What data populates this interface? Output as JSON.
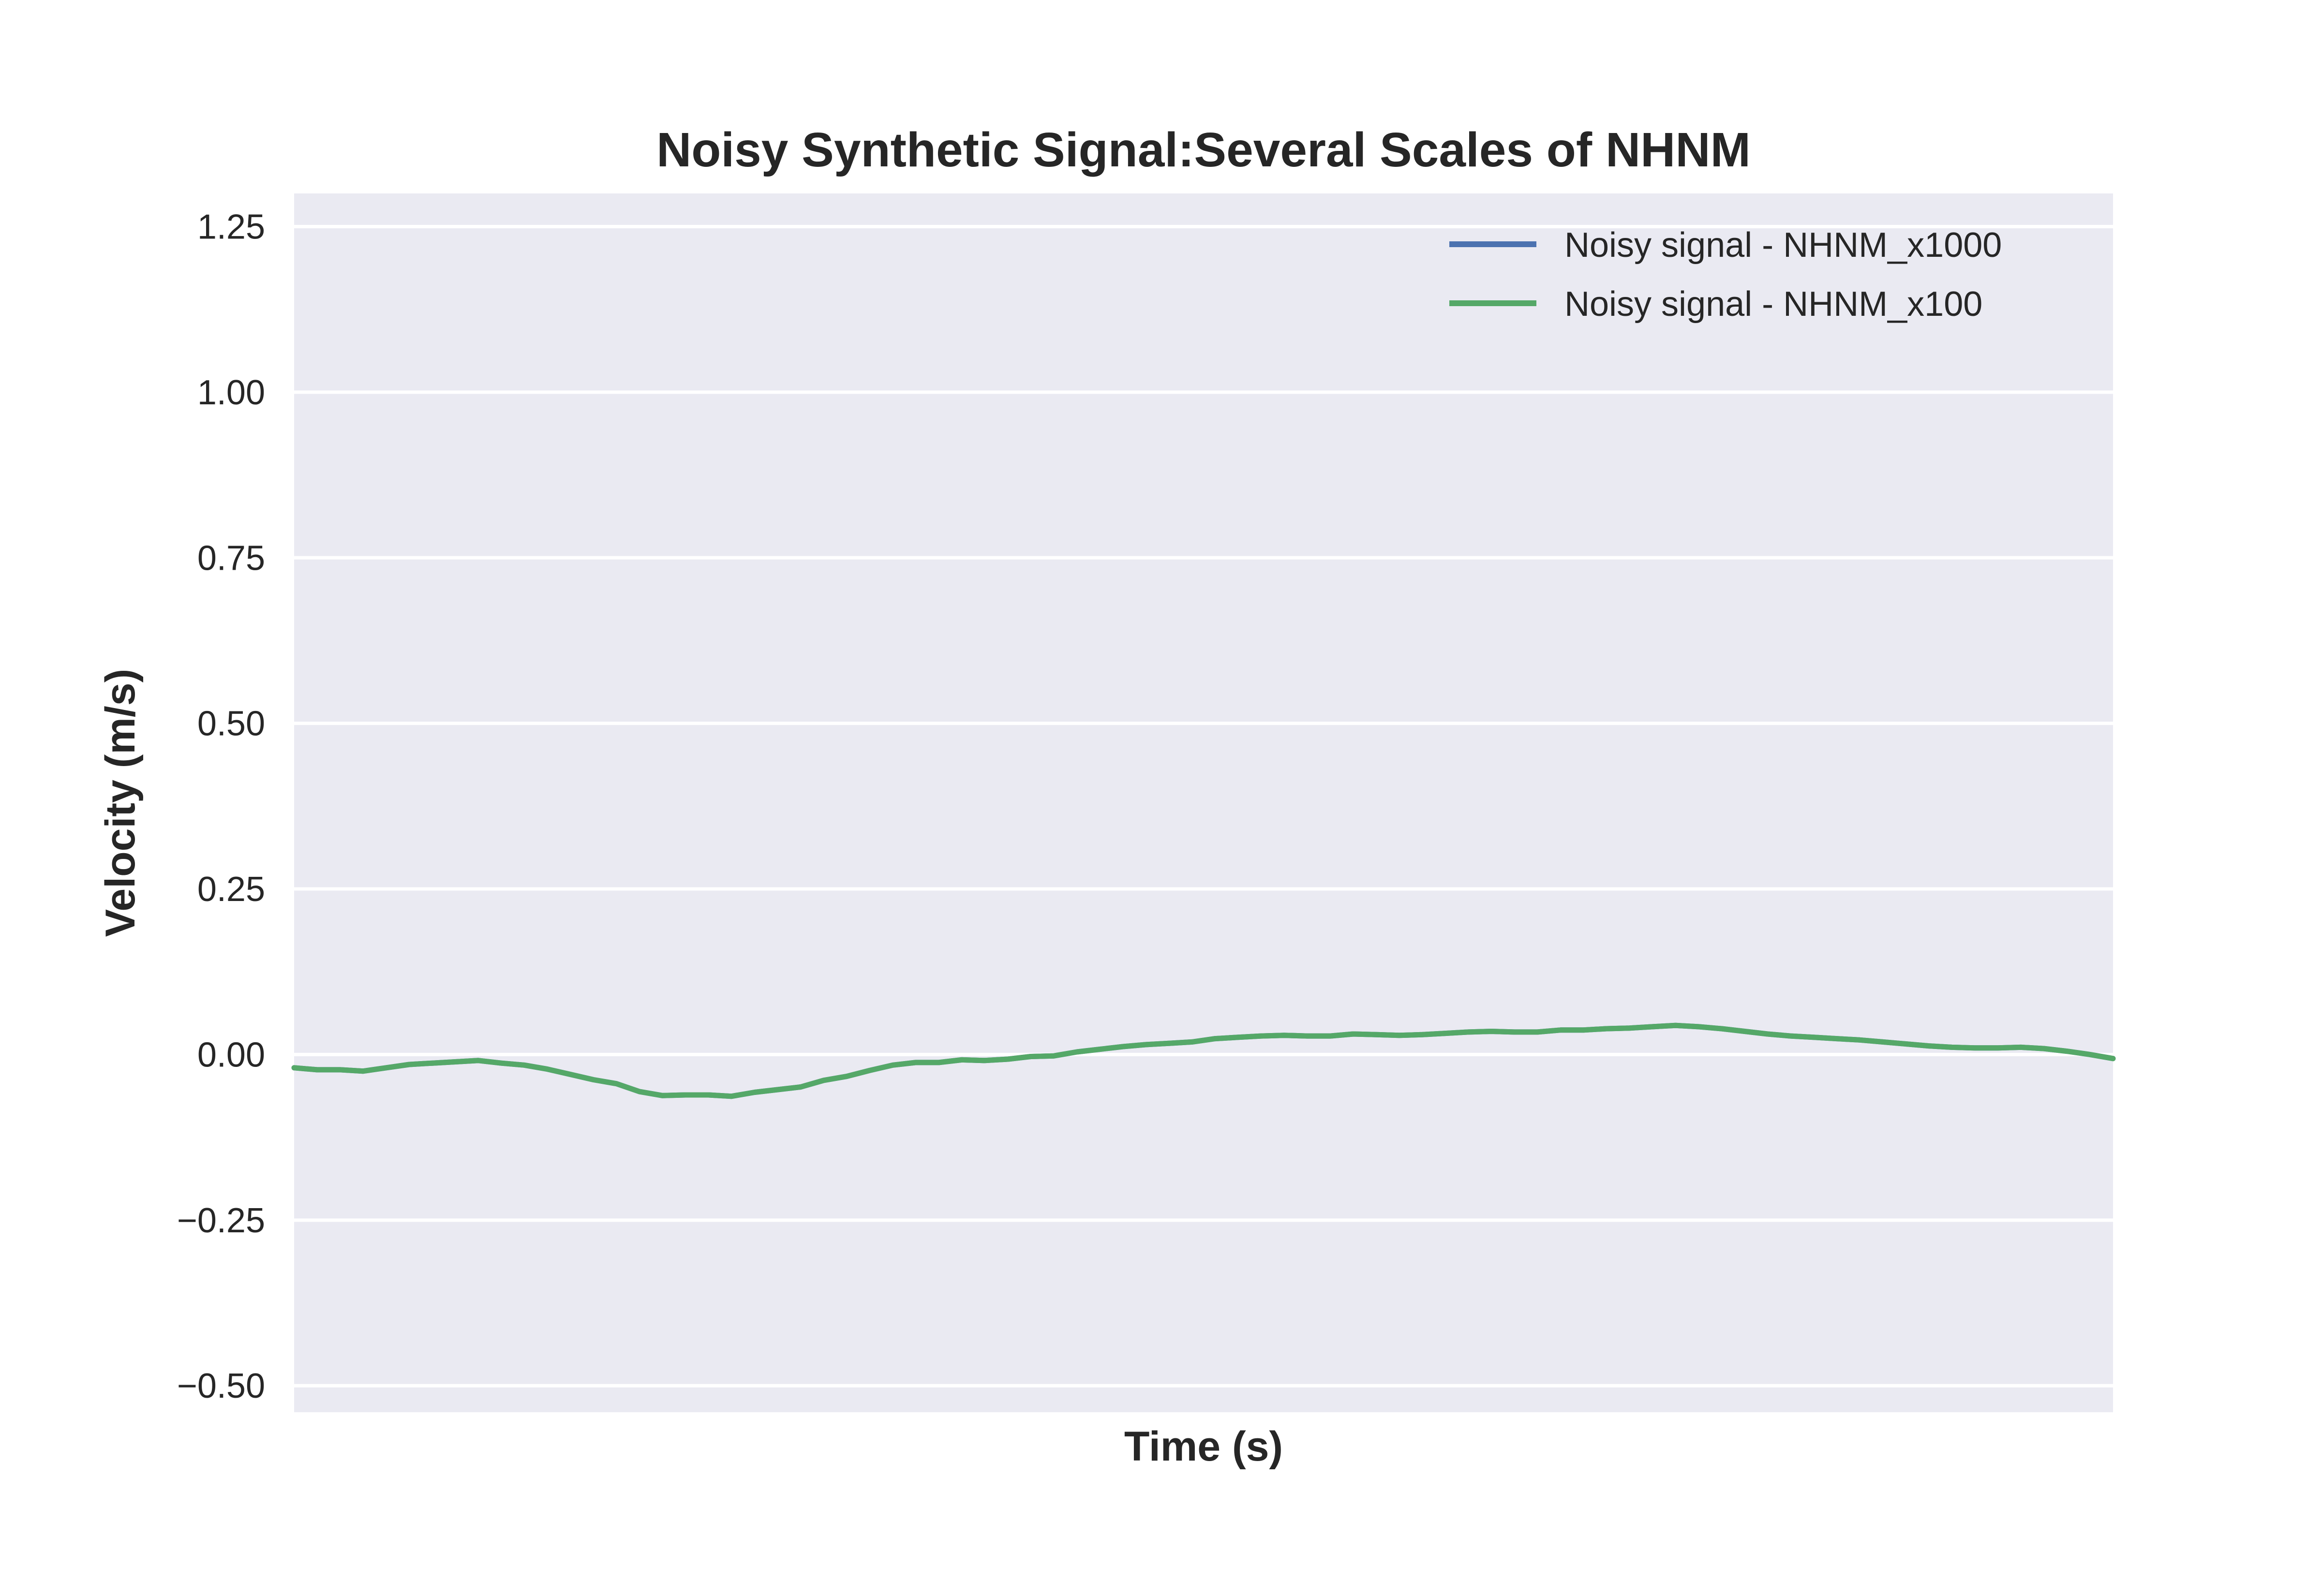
{
  "chart_data": {
    "type": "line",
    "title": "Noisy Synthetic Signal:Several Scales of NHNM",
    "xlabel": "Time (s)",
    "ylabel": "Velocity (m/s)",
    "ylim": [
      -0.54,
      1.3
    ],
    "yticks": [
      -0.5,
      -0.25,
      0.0,
      0.25,
      0.5,
      0.75,
      1.0,
      1.25
    ],
    "ytick_labels": [
      "−0.50",
      "−0.25",
      "0.00",
      "0.25",
      "0.50",
      "0.75",
      "1.00",
      "1.25"
    ],
    "xticks_visible": false,
    "grid": true,
    "background": "#eaeaf2",
    "legend_position": "top-right",
    "series": [
      {
        "name": "Noisy signal - NHNM_x1000",
        "color": "#4c72b0",
        "values": [
          -0.02,
          -0.023,
          -0.023,
          -0.025,
          -0.02,
          -0.015,
          -0.013,
          -0.011,
          -0.009,
          -0.013,
          -0.016,
          -0.022,
          -0.03,
          -0.038,
          -0.044,
          -0.056,
          -0.062,
          -0.061,
          -0.061,
          -0.063,
          -0.057,
          -0.053,
          -0.049,
          -0.039,
          -0.033,
          -0.024,
          -0.016,
          -0.012,
          -0.012,
          -0.008,
          -0.009,
          -0.007,
          -0.003,
          -0.002,
          0.004,
          0.008,
          0.012,
          0.015,
          0.017,
          0.019,
          0.024,
          0.026,
          0.028,
          0.029,
          0.028,
          0.028,
          0.031,
          0.03,
          0.029,
          0.03,
          0.032,
          0.034,
          0.035,
          0.034,
          0.034,
          0.037,
          0.037,
          0.039,
          0.04,
          0.042,
          0.044,
          0.042,
          0.039,
          0.035,
          0.031,
          0.028,
          0.026,
          0.024,
          0.022,
          0.019,
          0.016,
          0.013,
          0.011,
          0.01,
          0.01,
          0.011,
          0.009,
          0.005,
          0.0,
          -0.006
        ]
      },
      {
        "name": "Noisy signal - NHNM_x100",
        "color": "#55a868",
        "values": [
          -0.02,
          -0.023,
          -0.023,
          -0.025,
          -0.02,
          -0.015,
          -0.013,
          -0.011,
          -0.009,
          -0.013,
          -0.016,
          -0.022,
          -0.03,
          -0.038,
          -0.044,
          -0.056,
          -0.062,
          -0.061,
          -0.061,
          -0.063,
          -0.057,
          -0.053,
          -0.049,
          -0.039,
          -0.033,
          -0.024,
          -0.016,
          -0.012,
          -0.012,
          -0.008,
          -0.009,
          -0.007,
          -0.003,
          -0.002,
          0.004,
          0.008,
          0.012,
          0.015,
          0.017,
          0.019,
          0.024,
          0.026,
          0.028,
          0.029,
          0.028,
          0.028,
          0.031,
          0.03,
          0.029,
          0.03,
          0.032,
          0.034,
          0.035,
          0.034,
          0.034,
          0.037,
          0.037,
          0.039,
          0.04,
          0.042,
          0.044,
          0.042,
          0.039,
          0.035,
          0.031,
          0.028,
          0.026,
          0.024,
          0.022,
          0.019,
          0.016,
          0.013,
          0.011,
          0.01,
          0.01,
          0.011,
          0.009,
          0.005,
          0.0,
          -0.006
        ]
      }
    ]
  }
}
